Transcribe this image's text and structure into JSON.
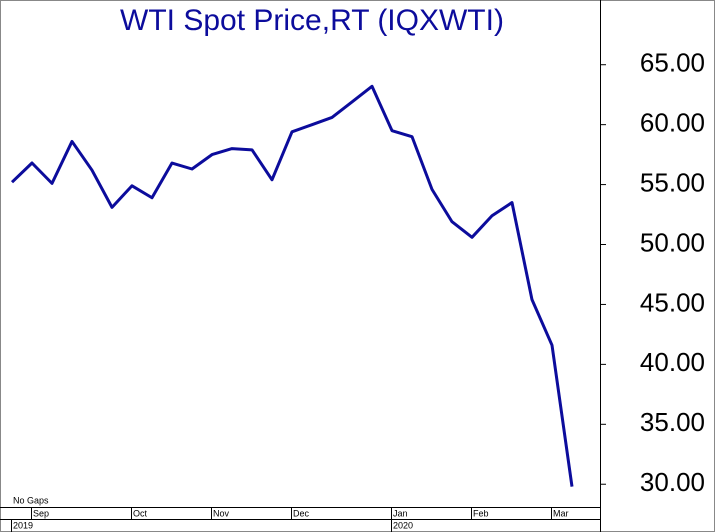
{
  "chart_data": {
    "type": "line",
    "title": "WTI  Spot  Price,RT  (IQXWTI)",
    "annotation": "No  Gaps",
    "categories": [
      null,
      "Sep",
      null,
      null,
      null,
      null,
      "Oct",
      null,
      null,
      null,
      "Nov",
      null,
      null,
      null,
      "Dec",
      null,
      null,
      null,
      null,
      "Jan",
      null,
      null,
      null,
      "Feb",
      null,
      null,
      null,
      "Mar",
      null
    ],
    "years": [
      "2019",
      null,
      null,
      null,
      null,
      null,
      null,
      null,
      null,
      null,
      null,
      null,
      null,
      null,
      null,
      null,
      null,
      null,
      null,
      "2020",
      null,
      null,
      null,
      null,
      null,
      null,
      null,
      null,
      null
    ],
    "series": [
      {
        "name": "WTI Spot Price",
        "color": "#0c0c9c",
        "values": [
          55.2,
          56.8,
          55.1,
          58.6,
          56.2,
          53.1,
          54.9,
          53.9,
          56.8,
          56.3,
          57.5,
          58.0,
          57.9,
          55.4,
          59.4,
          60.0,
          60.6,
          61.9,
          63.2,
          59.5,
          59.0,
          54.6,
          51.9,
          50.6,
          52.4,
          53.5,
          45.4,
          41.6,
          29.8
        ]
      }
    ],
    "ylim": [
      28.1,
      70.4
    ],
    "yticks": [
      {
        "value": 30,
        "label": "30.00"
      },
      {
        "value": 35,
        "label": "35.00"
      },
      {
        "value": 40,
        "label": "40.00"
      },
      {
        "value": 45,
        "label": "45.00"
      },
      {
        "value": 50,
        "label": "50.00"
      },
      {
        "value": 55,
        "label": "55.00"
      },
      {
        "value": 60,
        "label": "60.00"
      },
      {
        "value": 65,
        "label": "65.00"
      }
    ],
    "grid": false
  }
}
